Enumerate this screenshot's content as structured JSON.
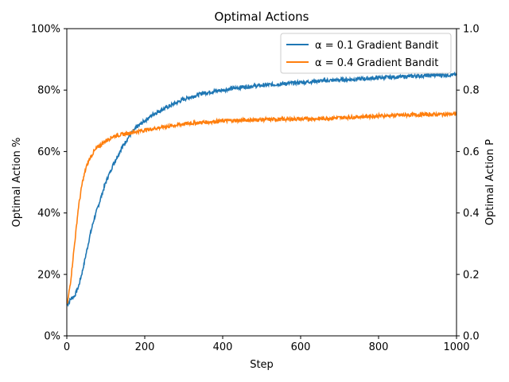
{
  "chart_data": {
    "type": "line",
    "title": "Optimal Actions",
    "xlabel": "Step",
    "ylabel": "Optimal Action %",
    "y2label": "Optimal Action P",
    "xlim": [
      0,
      1000
    ],
    "ylim": [
      0,
      100
    ],
    "y2lim": [
      0,
      1
    ],
    "xticks": [
      "0",
      "200",
      "400",
      "600",
      "800",
      "1000"
    ],
    "yticks": [
      "0%",
      "20%",
      "40%",
      "60%",
      "80%",
      "100%"
    ],
    "y2ticks": [
      "0.0",
      "0.2",
      "0.4",
      "0.6",
      "0.8",
      "1.0"
    ],
    "grid": false,
    "legend_position": "top-right",
    "series": [
      {
        "name": "α = 0.1 Gradient Bandit",
        "color": "#1f77b4",
        "x": [
          1,
          10,
          20,
          30,
          40,
          50,
          60,
          70,
          80,
          90,
          100,
          120,
          140,
          160,
          180,
          200,
          220,
          250,
          300,
          350,
          400,
          450,
          500,
          550,
          600,
          650,
          700,
          750,
          800,
          850,
          900,
          950,
          1000
        ],
        "values": [
          10,
          12,
          13,
          16,
          21,
          27,
          33,
          38,
          42,
          46,
          50,
          56,
          61,
          65,
          68,
          70,
          72,
          74,
          77,
          79,
          80,
          81,
          81.5,
          82,
          82.5,
          83,
          83.3,
          83.6,
          84,
          84.3,
          84.6,
          84.9,
          85
        ]
      },
      {
        "name": "α = 0.4 Gradient Bandit",
        "color": "#ff7f0e",
        "x": [
          1,
          10,
          20,
          30,
          40,
          50,
          60,
          70,
          80,
          90,
          100,
          120,
          140,
          160,
          180,
          200,
          250,
          300,
          350,
          400,
          450,
          500,
          550,
          600,
          650,
          700,
          750,
          800,
          850,
          900,
          950,
          1000
        ],
        "values": [
          10,
          18,
          30,
          42,
          50,
          55,
          58,
          60,
          61.5,
          62.5,
          63.5,
          65,
          65.5,
          66,
          66.5,
          67,
          68,
          69,
          69.5,
          70,
          70.2,
          70.4,
          70.5,
          70.6,
          70.7,
          71,
          71.3,
          71.6,
          71.8,
          72,
          72.1,
          72.2
        ]
      }
    ]
  }
}
